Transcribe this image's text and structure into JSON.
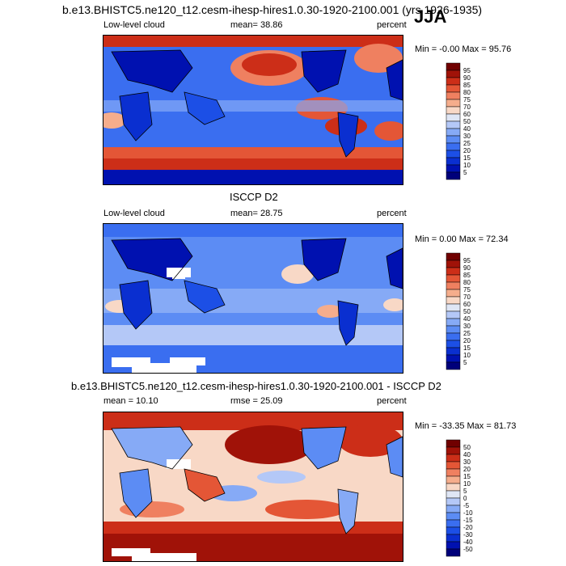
{
  "page": {
    "title": "b.e13.BHISTC5.ne120_t12.cesm-ihesp-hires1.0.30-1920-2100.001 (yrs 1926-1935)",
    "season": "JJA"
  },
  "panels": [
    {
      "variable": "Low-level cloud",
      "mean_text": "mean=  38.86",
      "units": "percent",
      "minmax": "Min =  -0.00 Max =  95.76"
    },
    {
      "heading": "ISCCP D2",
      "variable": "Low-level cloud",
      "mean_text": "mean=  28.75",
      "units": "percent",
      "minmax": "Min =   0.00 Max =  72.34"
    },
    {
      "heading": "b.e13.BHISTC5.ne120_t12.cesm-ihesp-hires1.0.30-1920-2100.001 - ISCCP D2",
      "mean_text": "mean =  10.10",
      "rmse_text": "rmse =  25.09",
      "units": "percent",
      "minmax": "Min = -33.35 Max =  81.73"
    }
  ],
  "chart_data": [
    {
      "type": "heatmap",
      "title": "Low-level cloud",
      "units": "percent",
      "mean": 38.86,
      "min": -0.0,
      "max": 95.76,
      "colorbar_levels": [
        5,
        10,
        15,
        20,
        25,
        30,
        40,
        50,
        60,
        70,
        75,
        80,
        85,
        90,
        95
      ],
      "colorbar_labels": [
        "95",
        "90",
        "85",
        "80",
        "75",
        "70",
        "60",
        "50",
        "40",
        "30",
        "25",
        "20",
        "15",
        "10",
        "5"
      ],
      "colors": [
        "#00007a",
        "#0011b0",
        "#0a2fd0",
        "#1c4fe6",
        "#3a6ef0",
        "#5c8cf4",
        "#86aaf6",
        "#b4c8f7",
        "#dfe6f5",
        "#f8d8c6",
        "#f5ad8c",
        "#ef8060",
        "#e45636",
        "#cc2e18",
        "#a01208",
        "#700000"
      ]
    },
    {
      "type": "heatmap",
      "title": "ISCCP D2 Low-level cloud",
      "units": "percent",
      "mean": 28.75,
      "min": 0.0,
      "max": 72.34,
      "colorbar_levels": [
        5,
        10,
        15,
        20,
        25,
        30,
        40,
        50,
        60,
        70,
        75,
        80,
        85,
        90,
        95
      ],
      "colorbar_labels": [
        "95",
        "90",
        "85",
        "80",
        "75",
        "70",
        "60",
        "50",
        "40",
        "30",
        "25",
        "20",
        "15",
        "10",
        "5"
      ],
      "colors": [
        "#00007a",
        "#0011b0",
        "#0a2fd0",
        "#1c4fe6",
        "#3a6ef0",
        "#5c8cf4",
        "#86aaf6",
        "#b4c8f7",
        "#dfe6f5",
        "#f8d8c6",
        "#f5ad8c",
        "#ef8060",
        "#e45636",
        "#cc2e18",
        "#a01208",
        "#700000"
      ]
    },
    {
      "type": "heatmap",
      "title": "Model - ISCCP D2",
      "units": "percent",
      "mean": 10.1,
      "rmse": 25.09,
      "min": -33.35,
      "max": 81.73,
      "colorbar_levels": [
        -50,
        -40,
        -30,
        -20,
        -15,
        -10,
        -5,
        0,
        5,
        10,
        15,
        20,
        30,
        40,
        50
      ],
      "colorbar_labels": [
        "50",
        "40",
        "30",
        "20",
        "15",
        "10",
        "5",
        "0",
        "-5",
        "-10",
        "-15",
        "-20",
        "-30",
        "-40",
        "-50"
      ],
      "colors": [
        "#00007a",
        "#0011b0",
        "#0a2fd0",
        "#1c4fe6",
        "#3a6ef0",
        "#5c8cf4",
        "#86aaf6",
        "#b4c8f7",
        "#dfe6f5",
        "#f8d8c6",
        "#f5ad8c",
        "#ef8060",
        "#e45636",
        "#cc2e18",
        "#a01208",
        "#700000"
      ]
    }
  ]
}
